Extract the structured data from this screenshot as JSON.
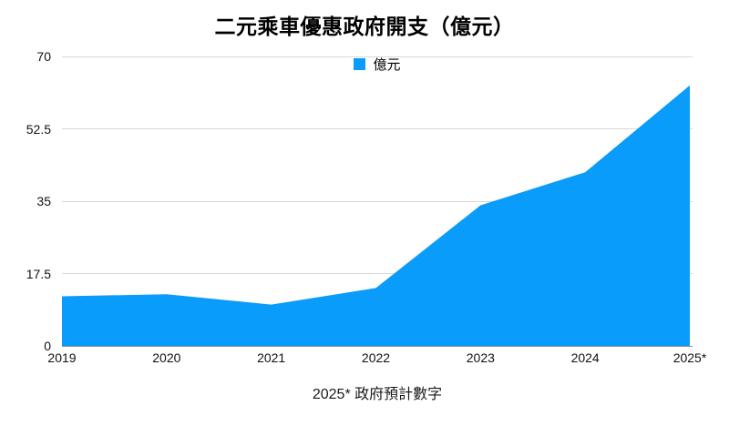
{
  "chart_data": {
    "type": "area",
    "title": "二元乘車優惠政府開支（億元）",
    "legend": {
      "position": "top-center",
      "entries": [
        {
          "label": "億元",
          "color": "#0a9cfa"
        }
      ]
    },
    "categories": [
      "2019",
      "2020",
      "2021",
      "2022",
      "2023",
      "2024",
      "2025*"
    ],
    "series": [
      {
        "name": "億元",
        "values": [
          12,
          12.5,
          10,
          14,
          34,
          42,
          63
        ]
      }
    ],
    "xlabel": "",
    "ylabel": "",
    "ylim": [
      0,
      70
    ],
    "yticks": [
      0,
      17.5,
      35,
      52.5,
      70
    ],
    "grid": "horizontal",
    "series_color": "#0a9cfa",
    "gridline_color": "#d8d8d8",
    "axis_color": "#8f8f8f",
    "footnote": "2025* 政府預計數字"
  }
}
